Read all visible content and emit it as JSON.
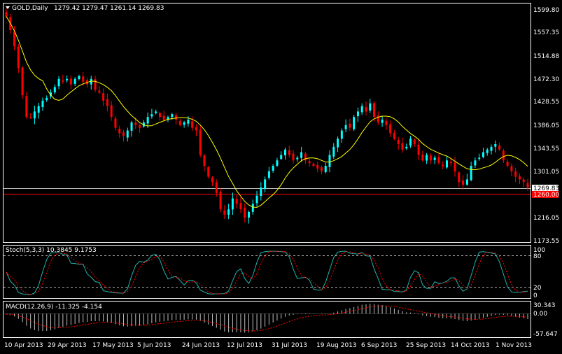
{
  "main_chart": {
    "symbol_label": "GOLD,Daily",
    "ohlc_label": "1279.42 1279.47 1261.14 1269.83",
    "menu_icon": "triangle-down-icon",
    "price_axis_labels": [
      "1599.80",
      "1557.35",
      "1514.88",
      "1472.30",
      "1428.55",
      "1386.05",
      "1343.55",
      "1301.05",
      "1216.05",
      "1173.55"
    ],
    "bid_price": "1269.83",
    "ask_price": "1260.00",
    "bid_line_color": "#c0c0c0",
    "ask_line_color": "#ff0000"
  },
  "stoch": {
    "label": "Stoch(5,3,3) 10.3845 9.1753",
    "scale_labels": [
      "100",
      "80",
      "20",
      "0"
    ],
    "main_color": "#20b2aa",
    "signal_color": "#ff0000"
  },
  "macd": {
    "label": "MACD(12,26,9) -11.325 -4.154",
    "scale_labels": [
      "30.343",
      "0.00",
      "-57.647"
    ],
    "signal_color": "#ff0000"
  },
  "time_axis_labels": [
    "10 Apr 2013",
    "29 Apr 2013",
    "17 May 2013",
    "5 Jun 2013",
    "24 Jun 2013",
    "12 Jul 2013",
    "31 Jul 2013",
    "19 Aug 2013",
    "6 Sep 2013",
    "25 Sep 2013",
    "14 Oct 2013",
    "1 Nov 2013"
  ],
  "colors": {
    "background": "#000000",
    "bull_candle": "#00ffff",
    "bear_candle": "#ff0000",
    "ma": "#ffff00",
    "frame": "#ffffff",
    "text": "#ffffff"
  },
  "chart_data": {
    "type": "candlestick",
    "symbol": "GOLD",
    "timeframe": "Daily",
    "ylim": [
      1173.55,
      1599.8
    ],
    "closes": [
      1585,
      1560,
      1530,
      1490,
      1440,
      1400,
      1400,
      1410,
      1420,
      1430,
      1435,
      1445,
      1455,
      1470,
      1465,
      1470,
      1460,
      1470,
      1475,
      1465,
      1460,
      1470,
      1450,
      1445,
      1430,
      1420,
      1400,
      1380,
      1370,
      1365,
      1375,
      1390,
      1385,
      1380,
      1390,
      1400,
      1405,
      1410,
      1400,
      1395,
      1400,
      1405,
      1395,
      1385,
      1390,
      1395,
      1380,
      1375,
      1330,
      1310,
      1290,
      1280,
      1260,
      1230,
      1220,
      1230,
      1250,
      1240,
      1230,
      1215,
      1225,
      1240,
      1255,
      1270,
      1285,
      1300,
      1310,
      1320,
      1330,
      1340,
      1330,
      1320,
      1325,
      1335,
      1320,
      1315,
      1310,
      1305,
      1300,
      1310,
      1330,
      1345,
      1360,
      1375,
      1385,
      1380,
      1400,
      1410,
      1420,
      1410,
      1425,
      1400,
      1390,
      1395,
      1385,
      1370,
      1360,
      1350,
      1340,
      1345,
      1360,
      1350,
      1330,
      1320,
      1330,
      1320,
      1325,
      1315,
      1310,
      1320,
      1315,
      1300,
      1280,
      1275,
      1285,
      1310,
      1320,
      1325,
      1335,
      1340,
      1345,
      1350,
      1340,
      1320,
      1310,
      1300,
      1290,
      1285,
      1280,
      1270
    ]
  }
}
